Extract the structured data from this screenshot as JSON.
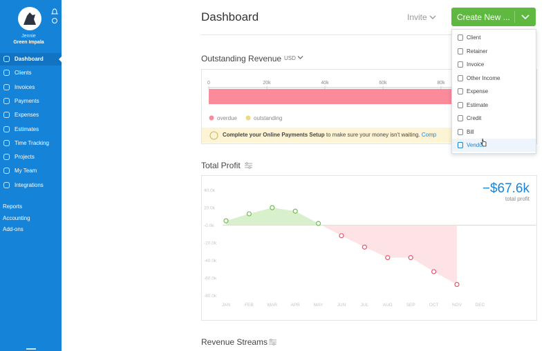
{
  "sidebar": {
    "user_name": "Jennie",
    "company": "Green Impala",
    "nav": [
      "Dashboard",
      "Clients",
      "Invoices",
      "Payments",
      "Expenses",
      "Estimates",
      "Time Tracking",
      "Projects",
      "My Team",
      "Integrations"
    ],
    "secondary": [
      "Reports",
      "Accounting",
      "Add-ons"
    ]
  },
  "header": {
    "title": "Dashboard",
    "invite": "Invite",
    "create_button": "Create New ..."
  },
  "create_menu": [
    "Client",
    "Retainer",
    "Invoice",
    "Other Income",
    "Expense",
    "Estimate",
    "Credit",
    "Bill",
    "Vendor"
  ],
  "outstanding_revenue": {
    "title": "Outstanding Revenue",
    "currency": "USD",
    "xlim": [
      0,
      110000
    ],
    "xticks": [
      {
        "value": 0,
        "label": "0"
      },
      {
        "value": 20000,
        "label": "20k"
      },
      {
        "value": 40000,
        "label": "40k"
      },
      {
        "value": 60000,
        "label": "60k"
      },
      {
        "value": 80000,
        "label": "80k"
      }
    ],
    "series": [
      {
        "name": "overdue",
        "color": "#fb8a9a",
        "value": 110000
      },
      {
        "name": "outstanding",
        "color": "#f0d88a",
        "value": 0
      }
    ],
    "notice_bold": "Complete your Online Payments Setup",
    "notice_text": "to make sure your money isn't waiting.",
    "notice_link": "Comp"
  },
  "total_profit": {
    "title": "Total Profit",
    "total": "−$67.6k",
    "total_label": "total profit",
    "categories": [
      "JAN",
      "FEB",
      "MAR",
      "APR",
      "MAY",
      "JUN",
      "JUL",
      "AUG",
      "SEP",
      "OCT",
      "NOV",
      "DEC"
    ],
    "values": [
      5000,
      13000,
      20000,
      16000,
      2000,
      -12000,
      -25000,
      -37000,
      -37000,
      -53000,
      -67600,
      null
    ],
    "positive_color": "#6cbf4a",
    "negative_color": "#e5566a",
    "ylim": [
      -90000,
      50000
    ],
    "yticks": [
      {
        "value": 40000,
        "label": "40.0k"
      },
      {
        "value": 20000,
        "label": "20.0k"
      },
      {
        "value": 0,
        "label": "-0.0k"
      },
      {
        "value": -20000,
        "label": "-20.0k"
      },
      {
        "value": -40000,
        "label": "-40.0k"
      },
      {
        "value": -60000,
        "label": "-60.0k"
      },
      {
        "value": -80000,
        "label": "-80.0k"
      }
    ]
  },
  "revenue_streams": {
    "title": "Revenue Streams"
  }
}
